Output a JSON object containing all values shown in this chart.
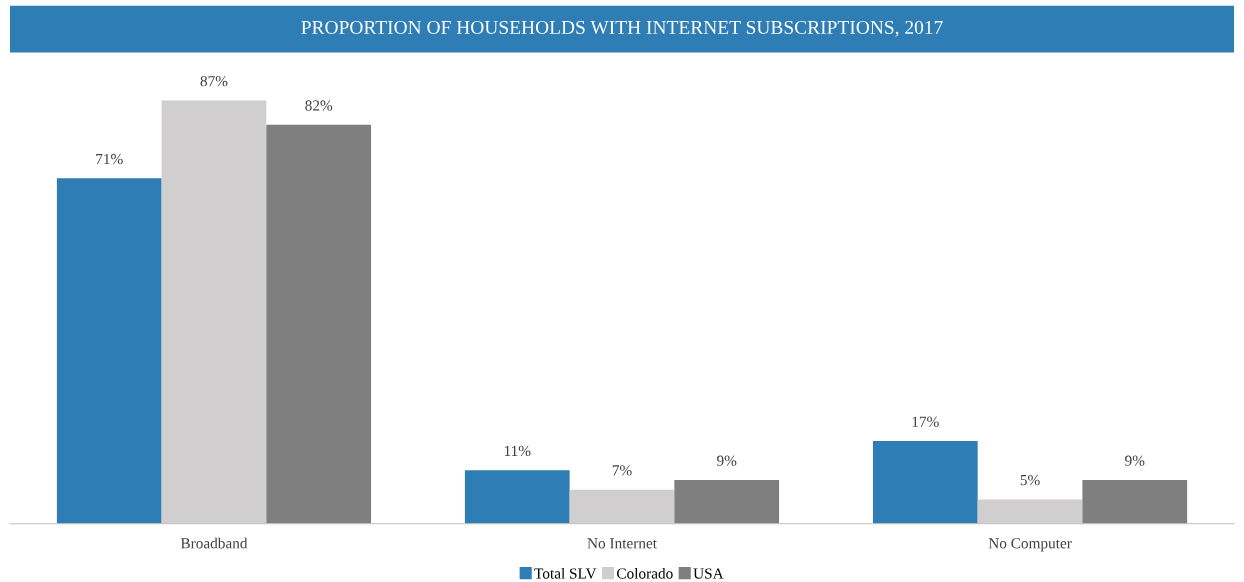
{
  "chart_data": {
    "type": "bar",
    "title": "PROPORTION OF HOUSEHOLDS WITH INTERNET SUBSCRIPTIONS, 2017",
    "categories": [
      "Broadband",
      "No Internet",
      "No Computer"
    ],
    "series": [
      {
        "name": "Total SLV",
        "color": "#2e7db5",
        "values": [
          71,
          11,
          17
        ],
        "value_labels": [
          "71%",
          "11%",
          "17%"
        ]
      },
      {
        "name": "Colorado",
        "color": "#d0cecf",
        "values": [
          87,
          7,
          5
        ],
        "value_labels": [
          "87%",
          "7%",
          "5%"
        ]
      },
      {
        "name": "USA",
        "color": "#7f7f7f",
        "values": [
          82,
          9,
          9
        ],
        "value_labels": [
          "82%",
          "9%",
          "9%"
        ]
      }
    ],
    "legend": "bottom",
    "grid": false
  }
}
